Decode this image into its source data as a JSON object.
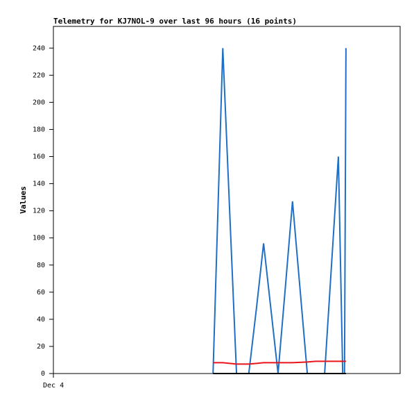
{
  "chart_data": {
    "type": "line",
    "title": "Telemetry for KJ7NOL-9 over last 96 hours (16 points)",
    "y_label": "Values",
    "x": [
      44.2,
      46.9,
      50.7,
      54.1,
      56.3,
      58.2,
      62.2,
      64.3,
      66.2,
      70.3,
      72.6,
      75.1,
      78.9,
      80.1,
      80.6,
      81.0
    ],
    "xlim": [
      0,
      96
    ],
    "xticks": [
      {
        "value": 0,
        "label": "Dec 4"
      }
    ],
    "ylim": [
      0,
      256
    ],
    "yticks": [
      0,
      20,
      40,
      60,
      80,
      100,
      120,
      140,
      160,
      180,
      200,
      220,
      240
    ],
    "grid": false,
    "series": [
      {
        "name": "Series 1",
        "color": "#1f6fc4",
        "values": [
          0,
          240,
          0,
          0,
          50,
          96,
          0,
          66,
          127,
          0,
          0,
          0,
          160,
          0,
          0,
          240
        ]
      },
      {
        "name": "Series 2",
        "color": "#e8141a",
        "values": [
          8,
          8,
          7,
          7,
          7.5,
          8,
          8,
          8,
          8,
          8.5,
          9,
          9,
          9,
          9,
          9,
          9
        ]
      },
      {
        "name": "Series 3",
        "color": "#000000",
        "values": [
          0,
          0,
          0,
          0,
          0,
          0,
          0,
          0,
          0,
          0,
          0,
          0,
          0,
          0,
          0,
          0
        ]
      }
    ]
  }
}
